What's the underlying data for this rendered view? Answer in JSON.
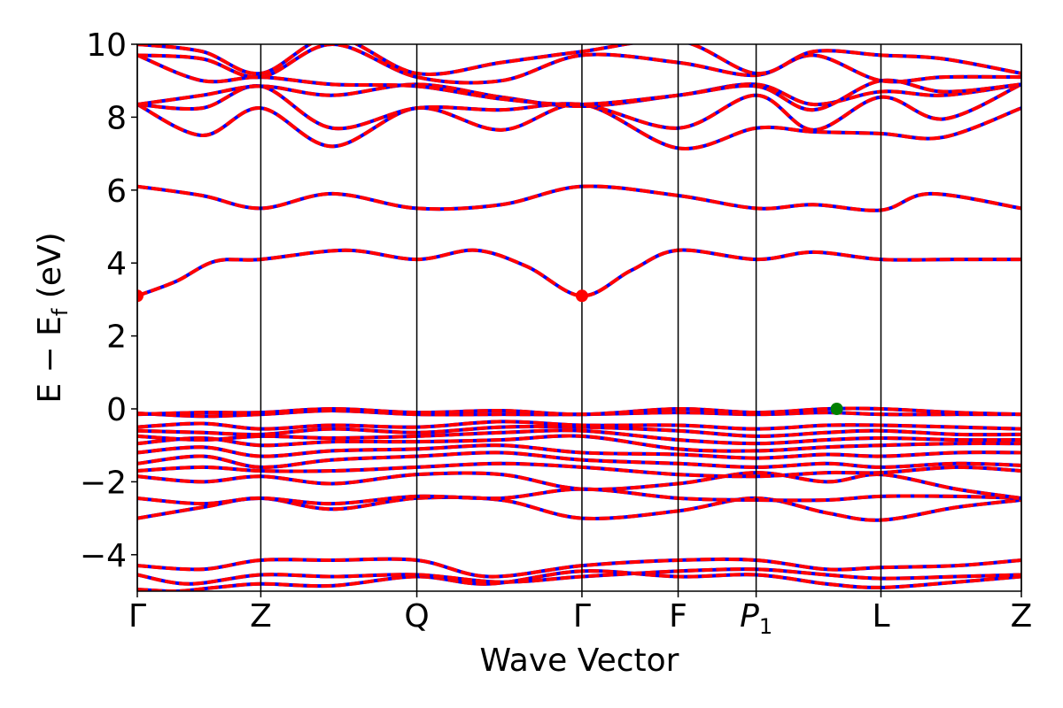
{
  "chart_data": {
    "type": "line",
    "title": "",
    "xlabel": "Wave Vector",
    "ylabel_main": "E − E",
    "ylabel_sub": "f",
    "ylabel_unit": " (eV)",
    "ylim": [
      -5,
      10
    ],
    "xlim": [
      0,
      6.8
    ],
    "yticks": [
      -4,
      -2,
      0,
      2,
      4,
      6,
      8,
      10
    ],
    "ytick_labels": [
      "−4",
      "−2",
      "0",
      "2",
      "4",
      "6",
      "8",
      "10"
    ],
    "kpoints": [
      {
        "label": "Γ",
        "sub": "",
        "x": 0
      },
      {
        "label": "Z",
        "sub": "",
        "x": 0.95
      },
      {
        "label": "Q",
        "sub": "",
        "x": 2.15
      },
      {
        "label": "Γ",
        "sub": "",
        "x": 3.42
      },
      {
        "label": "F",
        "sub": "",
        "x": 4.16
      },
      {
        "label": "P",
        "sub": "1",
        "x": 4.76
      },
      {
        "label": "L",
        "sub": "",
        "x": 5.72
      },
      {
        "label": "Z",
        "sub": "",
        "x": 6.8
      }
    ],
    "bands": [
      [
        [
          0,
          -4.95
        ],
        [
          0.3,
          -5.0
        ],
        [
          0.6,
          -4.9
        ],
        [
          0.95,
          -4.8
        ],
        [
          1.5,
          -4.85
        ],
        [
          2.15,
          -4.6
        ],
        [
          2.7,
          -4.8
        ],
        [
          3.42,
          -4.45
        ],
        [
          4.16,
          -4.6
        ],
        [
          4.76,
          -4.55
        ],
        [
          5.3,
          -4.8
        ],
        [
          5.72,
          -4.9
        ],
        [
          6.3,
          -4.75
        ],
        [
          6.8,
          -4.6
        ]
      ],
      [
        [
          0,
          -4.55
        ],
        [
          0.4,
          -4.8
        ],
        [
          0.95,
          -4.55
        ],
        [
          1.5,
          -4.6
        ],
        [
          2.15,
          -4.55
        ],
        [
          2.8,
          -4.75
        ],
        [
          3.42,
          -4.6
        ],
        [
          4.16,
          -4.45
        ],
        [
          4.76,
          -4.4
        ],
        [
          5.3,
          -4.55
        ],
        [
          5.72,
          -4.65
        ],
        [
          6.3,
          -4.6
        ],
        [
          6.8,
          -4.55
        ]
      ],
      [
        [
          0,
          -4.3
        ],
        [
          0.5,
          -4.4
        ],
        [
          0.95,
          -4.15
        ],
        [
          1.5,
          -4.15
        ],
        [
          2.15,
          -4.15
        ],
        [
          2.7,
          -4.6
        ],
        [
          3.42,
          -4.3
        ],
        [
          4.16,
          -4.15
        ],
        [
          4.76,
          -4.15
        ],
        [
          5.3,
          -4.4
        ],
        [
          5.72,
          -4.35
        ],
        [
          6.3,
          -4.3
        ],
        [
          6.8,
          -4.15
        ]
      ],
      [
        [
          0,
          -3.0
        ],
        [
          0.5,
          -2.7
        ],
        [
          0.95,
          -2.45
        ],
        [
          1.5,
          -2.75
        ],
        [
          2.15,
          -2.45
        ],
        [
          2.8,
          -2.5
        ],
        [
          3.42,
          -3.0
        ],
        [
          4.16,
          -2.8
        ],
        [
          4.76,
          -2.45
        ],
        [
          5.3,
          -2.85
        ],
        [
          5.72,
          -3.05
        ],
        [
          6.3,
          -2.7
        ],
        [
          6.8,
          -2.5
        ]
      ],
      [
        [
          0,
          -2.45
        ],
        [
          0.5,
          -2.6
        ],
        [
          0.95,
          -2.45
        ],
        [
          1.5,
          -2.6
        ],
        [
          2.15,
          -2.4
        ],
        [
          2.8,
          -2.45
        ],
        [
          3.42,
          -2.2
        ],
        [
          4.16,
          -2.45
        ],
        [
          4.76,
          -2.5
        ],
        [
          5.3,
          -2.5
        ],
        [
          5.72,
          -2.4
        ],
        [
          6.3,
          -2.4
        ],
        [
          6.8,
          -2.45
        ]
      ],
      [
        [
          0,
          -1.85
        ],
        [
          0.5,
          -2.0
        ],
        [
          0.95,
          -1.85
        ],
        [
          1.5,
          -2.05
        ],
        [
          2.15,
          -1.8
        ],
        [
          2.8,
          -1.8
        ],
        [
          3.42,
          -2.2
        ],
        [
          4.16,
          -2.05
        ],
        [
          4.76,
          -1.75
        ],
        [
          5.3,
          -2.0
        ],
        [
          5.72,
          -1.8
        ],
        [
          6.3,
          -2.2
        ],
        [
          6.8,
          -2.45
        ]
      ],
      [
        [
          0,
          -1.7
        ],
        [
          0.5,
          -1.6
        ],
        [
          0.95,
          -1.7
        ],
        [
          1.5,
          -1.7
        ],
        [
          2.15,
          -1.6
        ],
        [
          2.8,
          -1.5
        ],
        [
          3.42,
          -1.6
        ],
        [
          4.16,
          -1.8
        ],
        [
          4.76,
          -1.85
        ],
        [
          5.3,
          -1.75
        ],
        [
          5.72,
          -1.75
        ],
        [
          6.3,
          -1.6
        ],
        [
          6.8,
          -1.7
        ]
      ],
      [
        [
          0,
          -1.5
        ],
        [
          0.5,
          -1.3
        ],
        [
          0.95,
          -1.6
        ],
        [
          1.5,
          -1.4
        ],
        [
          2.15,
          -1.3
        ],
        [
          2.8,
          -1.2
        ],
        [
          3.42,
          -1.4
        ],
        [
          4.16,
          -1.5
        ],
        [
          4.76,
          -1.6
        ],
        [
          5.3,
          -1.5
        ],
        [
          5.72,
          -1.6
        ],
        [
          6.3,
          -1.5
        ],
        [
          6.8,
          -1.55
        ]
      ],
      [
        [
          0,
          -1.2
        ],
        [
          0.5,
          -1.05
        ],
        [
          0.95,
          -1.3
        ],
        [
          1.5,
          -1.15
        ],
        [
          2.15,
          -1.1
        ],
        [
          2.8,
          -1.0
        ],
        [
          3.42,
          -1.2
        ],
        [
          4.16,
          -1.25
        ],
        [
          4.76,
          -1.35
        ],
        [
          5.3,
          -1.25
        ],
        [
          5.72,
          -1.3
        ],
        [
          6.3,
          -1.2
        ],
        [
          6.8,
          -1.2
        ]
      ],
      [
        [
          0,
          -0.95
        ],
        [
          0.5,
          -0.8
        ],
        [
          0.95,
          -1.0
        ],
        [
          1.5,
          -0.9
        ],
        [
          2.15,
          -0.9
        ],
        [
          2.8,
          -0.85
        ],
        [
          3.42,
          -0.75
        ],
        [
          4.16,
          -1.1
        ],
        [
          4.76,
          -1.15
        ],
        [
          5.3,
          -1.05
        ],
        [
          5.72,
          -1.0
        ],
        [
          6.3,
          -0.95
        ],
        [
          6.8,
          -0.95
        ]
      ],
      [
        [
          0,
          -0.75
        ],
        [
          0.5,
          -0.85
        ],
        [
          0.95,
          -0.75
        ],
        [
          1.5,
          -0.8
        ],
        [
          2.15,
          -0.75
        ],
        [
          2.8,
          -0.65
        ],
        [
          3.42,
          -0.6
        ],
        [
          4.16,
          -0.85
        ],
        [
          4.76,
          -0.95
        ],
        [
          5.3,
          -0.85
        ],
        [
          5.72,
          -0.8
        ],
        [
          6.3,
          -0.85
        ],
        [
          6.8,
          -0.85
        ]
      ],
      [
        [
          0,
          -0.6
        ],
        [
          0.5,
          -0.65
        ],
        [
          0.95,
          -0.7
        ],
        [
          1.5,
          -0.55
        ],
        [
          2.15,
          -0.65
        ],
        [
          2.8,
          -0.5
        ],
        [
          3.42,
          -0.5
        ],
        [
          4.16,
          -0.6
        ],
        [
          4.76,
          -0.75
        ],
        [
          5.3,
          -0.65
        ],
        [
          5.72,
          -0.6
        ],
        [
          6.3,
          -0.7
        ],
        [
          6.8,
          -0.7
        ]
      ],
      [
        [
          0,
          -0.5
        ],
        [
          0.5,
          -0.4
        ],
        [
          0.95,
          -0.55
        ],
        [
          1.5,
          -0.45
        ],
        [
          2.15,
          -0.5
        ],
        [
          2.8,
          -0.35
        ],
        [
          3.42,
          -0.45
        ],
        [
          4.16,
          -0.45
        ],
        [
          4.76,
          -0.55
        ],
        [
          5.3,
          -0.45
        ],
        [
          5.72,
          -0.45
        ],
        [
          6.3,
          -0.5
        ],
        [
          6.8,
          -0.55
        ]
      ],
      [
        [
          0,
          -0.12
        ],
        [
          0.5,
          -0.2
        ],
        [
          0.95,
          -0.15
        ],
        [
          1.5,
          -0.05
        ],
        [
          2.15,
          -0.15
        ],
        [
          2.8,
          -0.15
        ],
        [
          3.42,
          -0.15
        ],
        [
          4.16,
          -0.1
        ],
        [
          4.76,
          -0.15
        ],
        [
          5.3,
          -0.1
        ],
        [
          5.72,
          -0.15
        ],
        [
          6.3,
          -0.15
        ],
        [
          6.8,
          -0.15
        ]
      ],
      [
        [
          0,
          -0.15
        ],
        [
          0.5,
          -0.1
        ],
        [
          0.95,
          -0.1
        ],
        [
          1.5,
          0.0
        ],
        [
          2.15,
          -0.1
        ],
        [
          2.8,
          -0.05
        ],
        [
          3.42,
          -0.15
        ],
        [
          4.16,
          0.0
        ],
        [
          4.76,
          -0.1
        ],
        [
          5.3,
          0.0
        ],
        [
          5.72,
          0.0
        ],
        [
          6.3,
          -0.1
        ],
        [
          6.8,
          -0.15
        ]
      ],
      [
        [
          0,
          3.1
        ],
        [
          0.3,
          3.5
        ],
        [
          0.6,
          4.05
        ],
        [
          0.95,
          4.1
        ],
        [
          1.6,
          4.35
        ],
        [
          2.15,
          4.1
        ],
        [
          2.6,
          4.35
        ],
        [
          3.0,
          3.9
        ],
        [
          3.42,
          3.1
        ],
        [
          3.8,
          3.8
        ],
        [
          4.16,
          4.35
        ],
        [
          4.76,
          4.1
        ],
        [
          5.2,
          4.3
        ],
        [
          5.72,
          4.1
        ],
        [
          6.3,
          4.1
        ],
        [
          6.8,
          4.1
        ]
      ],
      [
        [
          0,
          6.1
        ],
        [
          0.5,
          5.85
        ],
        [
          0.95,
          5.5
        ],
        [
          1.5,
          5.9
        ],
        [
          2.15,
          5.5
        ],
        [
          2.8,
          5.6
        ],
        [
          3.42,
          6.1
        ],
        [
          4.16,
          5.85
        ],
        [
          4.76,
          5.5
        ],
        [
          5.2,
          5.6
        ],
        [
          5.72,
          5.45
        ],
        [
          6.1,
          5.9
        ],
        [
          6.8,
          5.5
        ]
      ],
      [
        [
          0,
          8.35
        ],
        [
          0.5,
          7.5
        ],
        [
          0.95,
          8.25
        ],
        [
          1.5,
          7.2
        ],
        [
          2.15,
          8.25
        ],
        [
          2.8,
          7.65
        ],
        [
          3.42,
          8.35
        ],
        [
          4.16,
          7.15
        ],
        [
          4.76,
          7.7
        ],
        [
          5.2,
          7.6
        ],
        [
          5.72,
          7.55
        ],
        [
          6.2,
          7.45
        ],
        [
          6.8,
          8.25
        ]
      ],
      [
        [
          0,
          8.35
        ],
        [
          0.5,
          8.25
        ],
        [
          0.95,
          8.85
        ],
        [
          1.5,
          7.7
        ],
        [
          2.15,
          8.25
        ],
        [
          2.8,
          8.2
        ],
        [
          3.42,
          8.35
        ],
        [
          4.16,
          7.7
        ],
        [
          4.76,
          8.6
        ],
        [
          5.2,
          7.65
        ],
        [
          5.72,
          8.55
        ],
        [
          6.2,
          7.95
        ],
        [
          6.8,
          8.9
        ]
      ],
      [
        [
          0,
          8.35
        ],
        [
          0.5,
          8.6
        ],
        [
          0.95,
          8.85
        ],
        [
          1.5,
          8.6
        ],
        [
          2.15,
          8.9
        ],
        [
          2.8,
          8.55
        ],
        [
          3.42,
          8.3
        ],
        [
          4.16,
          8.6
        ],
        [
          4.76,
          8.9
        ],
        [
          5.2,
          8.35
        ],
        [
          5.72,
          8.7
        ],
        [
          6.2,
          8.6
        ],
        [
          6.8,
          8.9
        ]
      ],
      [
        [
          0,
          9.7
        ],
        [
          0.5,
          9.0
        ],
        [
          0.95,
          9.1
        ],
        [
          1.5,
          8.9
        ],
        [
          2.15,
          8.85
        ],
        [
          2.8,
          8.5
        ],
        [
          3.42,
          8.35
        ],
        [
          4.16,
          8.6
        ],
        [
          4.76,
          8.85
        ],
        [
          5.2,
          8.2
        ],
        [
          5.72,
          9.0
        ],
        [
          6.2,
          8.7
        ],
        [
          6.8,
          8.9
        ]
      ],
      [
        [
          0,
          9.7
        ],
        [
          0.5,
          9.6
        ],
        [
          0.95,
          9.1
        ],
        [
          1.5,
          10.0
        ],
        [
          2.15,
          9.1
        ],
        [
          2.8,
          9.0
        ],
        [
          3.42,
          9.7
        ],
        [
          4.16,
          9.5
        ],
        [
          4.76,
          9.15
        ],
        [
          5.2,
          9.7
        ],
        [
          5.72,
          9.0
        ],
        [
          6.2,
          9.1
        ],
        [
          6.8,
          9.1
        ]
      ],
      [
        [
          0,
          10.0
        ],
        [
          0.5,
          9.8
        ],
        [
          0.95,
          9.2
        ],
        [
          1.5,
          10.2
        ],
        [
          2.15,
          9.2
        ],
        [
          2.8,
          9.5
        ],
        [
          3.42,
          9.8
        ],
        [
          4.16,
          10.1
        ],
        [
          4.76,
          9.2
        ],
        [
          5.2,
          9.8
        ],
        [
          5.72,
          9.7
        ],
        [
          6.2,
          9.6
        ],
        [
          6.8,
          9.2
        ]
      ]
    ],
    "markers": [
      {
        "x": 0,
        "y": 3.1,
        "color": "#ff0000"
      },
      {
        "x": 3.42,
        "y": 3.1,
        "color": "#ff0000"
      },
      {
        "x": 5.38,
        "y": 0.0,
        "color": "#008000"
      }
    ],
    "colors": {
      "band_solid": "#0000ff",
      "band_dashed": "#ff0000",
      "axis": "#000000"
    }
  }
}
